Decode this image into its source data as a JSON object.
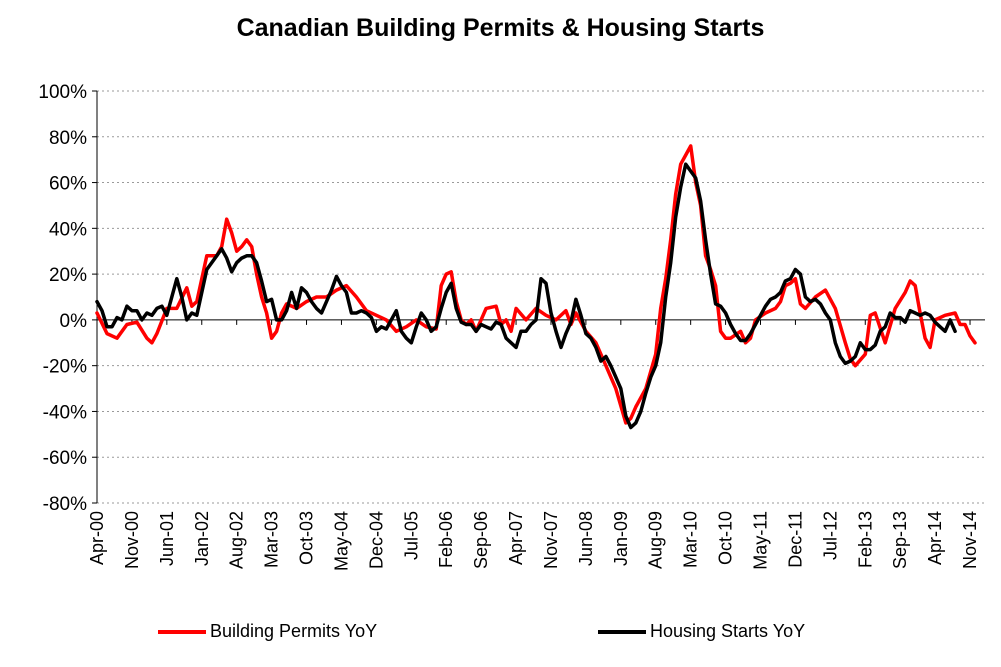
{
  "chart_data": {
    "type": "line",
    "title": "Canadian Building Permits & Housing Starts",
    "xlabel": "",
    "ylabel": "",
    "ylim": [
      -80,
      100
    ],
    "y_ticks": [
      -80,
      -60,
      -40,
      -20,
      0,
      20,
      40,
      60,
      80,
      100
    ],
    "y_tick_labels": [
      "-80%",
      "-60%",
      "-40%",
      "-20%",
      "0%",
      "20%",
      "40%",
      "60%",
      "80%",
      "100%"
    ],
    "x_range": [
      "Apr-00",
      "Feb-15"
    ],
    "x_ticks": [
      {
        "label": "Apr-00",
        "month": 0
      },
      {
        "label": "Nov-00",
        "month": 7
      },
      {
        "label": "Jun-01",
        "month": 14
      },
      {
        "label": "Jan-02",
        "month": 21
      },
      {
        "label": "Aug-02",
        "month": 28
      },
      {
        "label": "Mar-03",
        "month": 35
      },
      {
        "label": "Oct-03",
        "month": 42
      },
      {
        "label": "May-04",
        "month": 49
      },
      {
        "label": "Dec-04",
        "month": 56
      },
      {
        "label": "Jul-05",
        "month": 63
      },
      {
        "label": "Feb-06",
        "month": 70
      },
      {
        "label": "Sep-06",
        "month": 77
      },
      {
        "label": "Apr-07",
        "month": 84
      },
      {
        "label": "Nov-07",
        "month": 91
      },
      {
        "label": "Jun-08",
        "month": 98
      },
      {
        "label": "Jan-09",
        "month": 105
      },
      {
        "label": "Aug-09",
        "month": 112
      },
      {
        "label": "Mar-10",
        "month": 119
      },
      {
        "label": "Oct-10",
        "month": 126
      },
      {
        "label": "May-11",
        "month": 133
      },
      {
        "label": "Dec-11",
        "month": 140
      },
      {
        "label": "Jul-12",
        "month": 147
      },
      {
        "label": "Feb-13",
        "month": 154
      },
      {
        "label": "Sep-13",
        "month": 161
      },
      {
        "label": "Apr-14",
        "month": 168
      },
      {
        "label": "Nov-14",
        "month": 175
      }
    ],
    "x_months_total": 178,
    "series": [
      {
        "name": "Building Permits YoY",
        "color": "#ff0000",
        "points": [
          [
            0,
            3
          ],
          [
            2,
            -6
          ],
          [
            4,
            -8
          ],
          [
            6,
            -2
          ],
          [
            8,
            -1
          ],
          [
            10,
            -8
          ],
          [
            11,
            -10
          ],
          [
            12,
            -6
          ],
          [
            14,
            5
          ],
          [
            16,
            5
          ],
          [
            18,
            14
          ],
          [
            19,
            6
          ],
          [
            20,
            8
          ],
          [
            22,
            28
          ],
          [
            24,
            28
          ],
          [
            25,
            32
          ],
          [
            26,
            44
          ],
          [
            27,
            38
          ],
          [
            28,
            30
          ],
          [
            29,
            32
          ],
          [
            30,
            35
          ],
          [
            31,
            32
          ],
          [
            32,
            20
          ],
          [
            33,
            10
          ],
          [
            34,
            3
          ],
          [
            35,
            -8
          ],
          [
            36,
            -5
          ],
          [
            37,
            3
          ],
          [
            38,
            7
          ],
          [
            40,
            5
          ],
          [
            42,
            8
          ],
          [
            44,
            10
          ],
          [
            46,
            10
          ],
          [
            48,
            13
          ],
          [
            50,
            15
          ],
          [
            52,
            10
          ],
          [
            54,
            4
          ],
          [
            56,
            2
          ],
          [
            58,
            0
          ],
          [
            60,
            -5
          ],
          [
            62,
            -3
          ],
          [
            64,
            0
          ],
          [
            66,
            -3
          ],
          [
            68,
            -4
          ],
          [
            69,
            15
          ],
          [
            70,
            20
          ],
          [
            71,
            21
          ],
          [
            72,
            8
          ],
          [
            73,
            0
          ],
          [
            74,
            -2
          ],
          [
            75,
            0
          ],
          [
            76,
            -5
          ],
          [
            78,
            5
          ],
          [
            80,
            6
          ],
          [
            81,
            -2
          ],
          [
            82,
            0
          ],
          [
            83,
            -5
          ],
          [
            84,
            5
          ],
          [
            86,
            0
          ],
          [
            88,
            5
          ],
          [
            90,
            2
          ],
          [
            92,
            0
          ],
          [
            94,
            4
          ],
          [
            95,
            -2
          ],
          [
            96,
            3
          ],
          [
            98,
            -5
          ],
          [
            100,
            -10
          ],
          [
            102,
            -20
          ],
          [
            104,
            -30
          ],
          [
            106,
            -45
          ],
          [
            107,
            -43
          ],
          [
            108,
            -38
          ],
          [
            110,
            -30
          ],
          [
            112,
            -15
          ],
          [
            113,
            5
          ],
          [
            114,
            18
          ],
          [
            115,
            35
          ],
          [
            116,
            55
          ],
          [
            117,
            68
          ],
          [
            118,
            72
          ],
          [
            119,
            76
          ],
          [
            120,
            60
          ],
          [
            121,
            50
          ],
          [
            122,
            28
          ],
          [
            123,
            22
          ],
          [
            124,
            15
          ],
          [
            125,
            -5
          ],
          [
            126,
            -8
          ],
          [
            127,
            -8
          ],
          [
            129,
            -5
          ],
          [
            130,
            -10
          ],
          [
            131,
            -8
          ],
          [
            132,
            0
          ],
          [
            134,
            3
          ],
          [
            136,
            5
          ],
          [
            137,
            8
          ],
          [
            138,
            15
          ],
          [
            139,
            16
          ],
          [
            140,
            18
          ],
          [
            141,
            7
          ],
          [
            142,
            5
          ],
          [
            144,
            10
          ],
          [
            146,
            13
          ],
          [
            148,
            5
          ],
          [
            150,
            -10
          ],
          [
            151,
            -17
          ],
          [
            152,
            -20
          ],
          [
            154,
            -15
          ],
          [
            155,
            2
          ],
          [
            156,
            3
          ],
          [
            158,
            -10
          ],
          [
            160,
            5
          ],
          [
            162,
            12
          ],
          [
            163,
            17
          ],
          [
            164,
            15
          ],
          [
            165,
            3
          ],
          [
            166,
            -8
          ],
          [
            167,
            -12
          ],
          [
            168,
            0
          ],
          [
            170,
            2
          ],
          [
            172,
            3
          ],
          [
            173,
            -2
          ],
          [
            174,
            -2
          ],
          [
            175,
            -7
          ],
          [
            176,
            -10
          ]
        ]
      },
      {
        "name": "Housing Starts YoY",
        "color": "#000000",
        "points": [
          [
            0,
            8
          ],
          [
            1,
            4
          ],
          [
            2,
            -3
          ],
          [
            3,
            -3
          ],
          [
            4,
            1
          ],
          [
            5,
            0
          ],
          [
            6,
            6
          ],
          [
            7,
            4
          ],
          [
            8,
            4
          ],
          [
            9,
            0
          ],
          [
            10,
            3
          ],
          [
            11,
            2
          ],
          [
            12,
            5
          ],
          [
            13,
            6
          ],
          [
            14,
            2
          ],
          [
            16,
            18
          ],
          [
            17,
            10
          ],
          [
            18,
            0
          ],
          [
            19,
            3
          ],
          [
            20,
            2
          ],
          [
            22,
            22
          ],
          [
            24,
            28
          ],
          [
            25,
            31
          ],
          [
            26,
            27
          ],
          [
            27,
            21
          ],
          [
            28,
            25
          ],
          [
            29,
            27
          ],
          [
            30,
            28
          ],
          [
            31,
            28
          ],
          [
            32,
            25
          ],
          [
            33,
            17
          ],
          [
            34,
            8
          ],
          [
            35,
            9
          ],
          [
            36,
            0
          ],
          [
            37,
            0
          ],
          [
            38,
            4
          ],
          [
            39,
            12
          ],
          [
            40,
            5
          ],
          [
            41,
            14
          ],
          [
            42,
            12
          ],
          [
            43,
            8
          ],
          [
            44,
            5
          ],
          [
            45,
            3
          ],
          [
            46,
            8
          ],
          [
            47,
            13
          ],
          [
            48,
            19
          ],
          [
            49,
            15
          ],
          [
            50,
            12
          ],
          [
            51,
            3
          ],
          [
            52,
            3
          ],
          [
            53,
            4
          ],
          [
            54,
            3
          ],
          [
            55,
            1
          ],
          [
            56,
            -5
          ],
          [
            57,
            -3
          ],
          [
            58,
            -4
          ],
          [
            59,
            0
          ],
          [
            60,
            4
          ],
          [
            61,
            -5
          ],
          [
            62,
            -8
          ],
          [
            63,
            -10
          ],
          [
            64,
            -3
          ],
          [
            65,
            3
          ],
          [
            66,
            0
          ],
          [
            67,
            -5
          ],
          [
            68,
            -3
          ],
          [
            69,
            5
          ],
          [
            70,
            12
          ],
          [
            71,
            16
          ],
          [
            72,
            5
          ],
          [
            73,
            -1
          ],
          [
            74,
            -2
          ],
          [
            75,
            -2
          ],
          [
            76,
            -5
          ],
          [
            77,
            -2
          ],
          [
            78,
            -3
          ],
          [
            79,
            -4
          ],
          [
            80,
            -1
          ],
          [
            81,
            -2
          ],
          [
            82,
            -8
          ],
          [
            83,
            -10
          ],
          [
            84,
            -12
          ],
          [
            85,
            -5
          ],
          [
            86,
            -5
          ],
          [
            87,
            -2
          ],
          [
            88,
            0
          ],
          [
            89,
            18
          ],
          [
            90,
            16
          ],
          [
            91,
            3
          ],
          [
            92,
            -5
          ],
          [
            93,
            -12
          ],
          [
            94,
            -6
          ],
          [
            95,
            -1
          ],
          [
            96,
            9
          ],
          [
            97,
            2
          ],
          [
            98,
            -6
          ],
          [
            99,
            -8
          ],
          [
            100,
            -12
          ],
          [
            101,
            -18
          ],
          [
            102,
            -16
          ],
          [
            103,
            -20
          ],
          [
            104,
            -25
          ],
          [
            105,
            -30
          ],
          [
            106,
            -42
          ],
          [
            107,
            -47
          ],
          [
            108,
            -45
          ],
          [
            109,
            -40
          ],
          [
            110,
            -32
          ],
          [
            111,
            -25
          ],
          [
            112,
            -20
          ],
          [
            113,
            -10
          ],
          [
            114,
            10
          ],
          [
            115,
            25
          ],
          [
            116,
            45
          ],
          [
            117,
            58
          ],
          [
            118,
            68
          ],
          [
            119,
            65
          ],
          [
            120,
            62
          ],
          [
            121,
            52
          ],
          [
            122,
            35
          ],
          [
            123,
            20
          ],
          [
            124,
            7
          ],
          [
            125,
            6
          ],
          [
            126,
            3
          ],
          [
            127,
            -2
          ],
          [
            128,
            -6
          ],
          [
            129,
            -9
          ],
          [
            130,
            -9
          ],
          [
            131,
            -6
          ],
          [
            132,
            -2
          ],
          [
            133,
            2
          ],
          [
            134,
            6
          ],
          [
            135,
            9
          ],
          [
            136,
            10
          ],
          [
            137,
            12
          ],
          [
            138,
            17
          ],
          [
            139,
            18
          ],
          [
            140,
            22
          ],
          [
            141,
            20
          ],
          [
            142,
            10
          ],
          [
            143,
            8
          ],
          [
            144,
            9
          ],
          [
            145,
            7
          ],
          [
            146,
            3
          ],
          [
            147,
            0
          ],
          [
            148,
            -10
          ],
          [
            149,
            -16
          ],
          [
            150,
            -19
          ],
          [
            151,
            -18
          ],
          [
            152,
            -16
          ],
          [
            153,
            -10
          ],
          [
            154,
            -13
          ],
          [
            155,
            -13
          ],
          [
            156,
            -11
          ],
          [
            157,
            -5
          ],
          [
            158,
            -3
          ],
          [
            159,
            3
          ],
          [
            160,
            1
          ],
          [
            161,
            1
          ],
          [
            162,
            -1
          ],
          [
            163,
            4
          ],
          [
            164,
            3
          ],
          [
            165,
            2
          ],
          [
            166,
            3
          ],
          [
            167,
            2
          ],
          [
            168,
            -1
          ],
          [
            169,
            -3
          ],
          [
            170,
            -5
          ],
          [
            171,
            0
          ],
          [
            172,
            -5
          ]
        ]
      }
    ],
    "legend": [
      {
        "label": "Building Permits YoY",
        "color": "#ff0000"
      },
      {
        "label": "Housing Starts YoY",
        "color": "#000000"
      }
    ],
    "legend_position": "bottom",
    "grid": true
  }
}
